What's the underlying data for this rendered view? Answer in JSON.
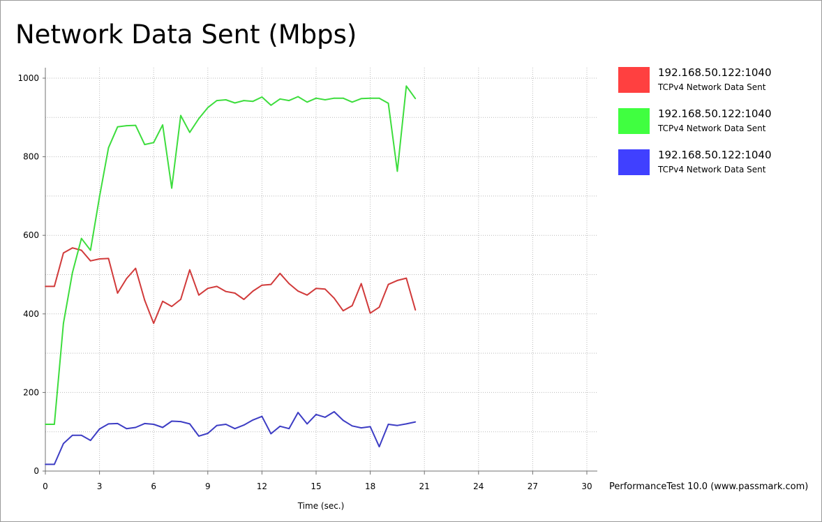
{
  "chart_data": {
    "type": "line",
    "title": "Network Data Sent (Mbps)",
    "xlabel": "Time (sec.)",
    "ylabel": "",
    "xlim": [
      0,
      30
    ],
    "ylim": [
      0,
      1000
    ],
    "x_ticks": [
      0,
      3,
      6,
      9,
      12,
      15,
      18,
      21,
      24,
      27,
      30
    ],
    "y_ticks": [
      0,
      200,
      400,
      600,
      800,
      1000
    ],
    "grid": true,
    "legend_position": "right",
    "series": [
      {
        "name": "192.168.50.122:1040",
        "description": "TCPv4 Network Data Sent",
        "color": "#ff4040",
        "line_color": "#d13a3a",
        "x": [
          0,
          0.5,
          1,
          1.5,
          2,
          2.5,
          3,
          3.5,
          4,
          4.5,
          5,
          5.5,
          6,
          6.5,
          7,
          7.5,
          8,
          8.5,
          9,
          9.5,
          10,
          10.5,
          11,
          11.5,
          12,
          12.5,
          13,
          13.5,
          14,
          14.5,
          15,
          15.5,
          16,
          16.5,
          17,
          17.5,
          18,
          18.5,
          19,
          19.5,
          20,
          20.5
        ],
        "values": [
          470,
          470,
          555,
          568,
          562,
          535,
          540,
          541,
          453,
          490,
          516,
          435,
          376,
          432,
          419,
          437,
          512,
          448,
          465,
          470,
          457,
          453,
          437,
          458,
          473,
          475,
          503,
          477,
          458,
          448,
          465,
          463,
          440,
          408,
          421,
          477,
          402,
          417,
          475,
          485,
          491,
          410
        ]
      },
      {
        "name": "192.168.50.122:1040",
        "description": "TCPv4 Network Data Sent",
        "color": "#40ff40",
        "line_color": "#3ddd3d",
        "x": [
          0,
          0.5,
          1,
          1.5,
          2,
          2.5,
          3,
          3.5,
          4,
          4.5,
          5,
          5.5,
          6,
          6.5,
          7,
          7.5,
          8,
          8.5,
          9,
          9.5,
          10,
          10.5,
          11,
          11.5,
          12,
          12.5,
          13,
          13.5,
          14,
          14.5,
          15,
          15.5,
          16,
          16.5,
          17,
          17.5,
          18,
          18.5,
          19,
          19.5,
          20,
          20.5
        ],
        "values": [
          119,
          119,
          376,
          505,
          592,
          562,
          698,
          823,
          876,
          879,
          880,
          831,
          836,
          881,
          720,
          905,
          862,
          897,
          925,
          943,
          945,
          937,
          943,
          941,
          952,
          931,
          947,
          943,
          953,
          939,
          949,
          945,
          949,
          949,
          939,
          948,
          949,
          949,
          936,
          763,
          980,
          948
        ]
      },
      {
        "name": "192.168.50.122:1040",
        "description": "TCPv4 Network Data Sent",
        "color": "#4040ff",
        "line_color": "#3d3dc4",
        "x": [
          0,
          0.5,
          1,
          1.5,
          2,
          2.5,
          3,
          3.5,
          4,
          4.5,
          5,
          5.5,
          6,
          6.5,
          7,
          7.5,
          8,
          8.5,
          9,
          9.5,
          10,
          10.5,
          11,
          11.5,
          12,
          12.5,
          13,
          13.5,
          14,
          14.5,
          15,
          15.5,
          16,
          16.5,
          17,
          17.5,
          18,
          18.5,
          19,
          19.5,
          20,
          20.5
        ],
        "values": [
          17,
          17,
          70,
          91,
          91,
          78,
          107,
          120,
          121,
          108,
          111,
          121,
          119,
          111,
          127,
          126,
          120,
          89,
          96,
          116,
          119,
          108,
          117,
          130,
          139,
          95,
          114,
          108,
          149,
          120,
          144,
          137,
          151,
          129,
          115,
          110,
          113,
          62,
          119,
          116,
          120,
          125
        ]
      }
    ]
  },
  "footer": "PerformanceTest 10.0 (www.passmark.com)"
}
